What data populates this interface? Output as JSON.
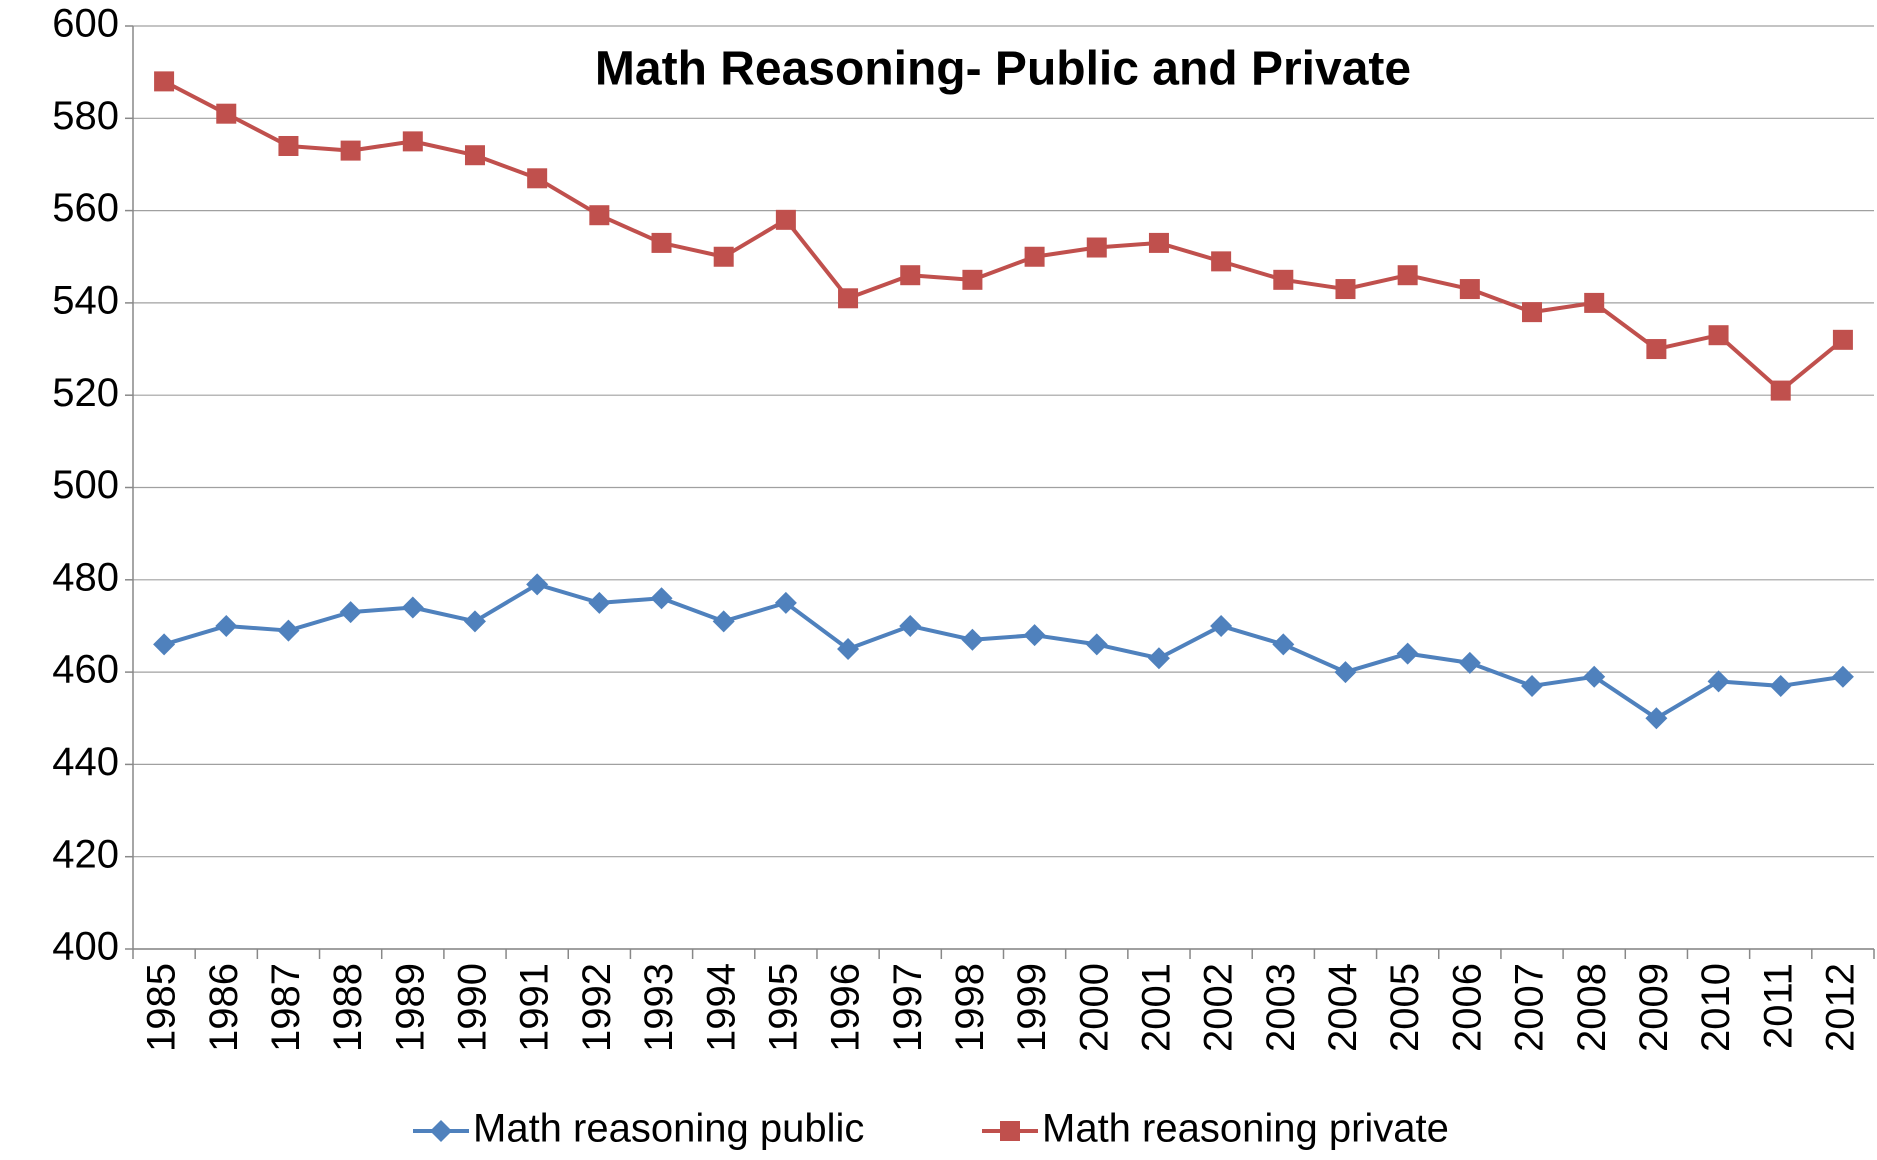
{
  "chart_data": {
    "type": "line",
    "title": "Math Reasoning- Public and Private",
    "categories": [
      "1985",
      "1986",
      "1987",
      "1988",
      "1989",
      "1990",
      "1991",
      "1992",
      "1993",
      "1994",
      "1995",
      "1996",
      "1997",
      "1998",
      "1999",
      "2000",
      "2001",
      "2002",
      "2003",
      "2004",
      "2005",
      "2006",
      "2007",
      "2008",
      "2009",
      "2010",
      "2011",
      "2012"
    ],
    "series": [
      {
        "name": "Math reasoning public",
        "color": "#4f81bd",
        "marker": "diamond",
        "values": [
          466,
          470,
          469,
          473,
          474,
          471,
          479,
          475,
          476,
          471,
          475,
          465,
          470,
          467,
          468,
          466,
          463,
          470,
          466,
          460,
          464,
          462,
          457,
          459,
          450,
          458,
          457,
          459
        ]
      },
      {
        "name": "Math reasoning private",
        "color": "#c0504d",
        "marker": "square",
        "values": [
          588,
          581,
          574,
          573,
          575,
          572,
          567,
          559,
          553,
          550,
          558,
          541,
          546,
          545,
          550,
          552,
          553,
          549,
          545,
          543,
          546,
          543,
          538,
          540,
          530,
          533,
          521,
          532
        ]
      }
    ],
    "ylim": [
      400,
      600
    ],
    "yticks": [
      400,
      420,
      440,
      460,
      480,
      500,
      520,
      540,
      560,
      580,
      600
    ],
    "grid": true,
    "legend": "bottom"
  }
}
